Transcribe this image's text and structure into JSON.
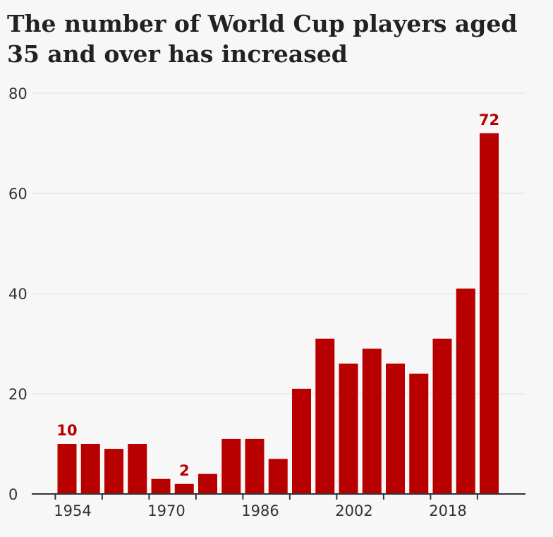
{
  "chart_data": {
    "type": "bar",
    "title": "The number of World Cup players aged 35 and over has increased",
    "categories": [
      "1954",
      "1958",
      "1962",
      "1966",
      "1970",
      "1974",
      "1978",
      "1982",
      "1986",
      "1990",
      "1994",
      "1998",
      "2002",
      "2006",
      "2010",
      "2014",
      "2018",
      "2022",
      "2026"
    ],
    "values": [
      10,
      10,
      9,
      10,
      3,
      2,
      4,
      11,
      11,
      7,
      21,
      31,
      26,
      29,
      26,
      24,
      31,
      41,
      72
    ],
    "x_tick_labels": [
      "1954",
      "1970",
      "1986",
      "2002",
      "2018"
    ],
    "y_ticks": [
      0,
      20,
      40,
      60,
      80
    ],
    "ylim": [
      0,
      80
    ],
    "xlabel": "",
    "ylabel": "",
    "grid": true,
    "data_labels": [
      {
        "category": "1954",
        "text": "10"
      },
      {
        "category": "1974",
        "text": "2"
      },
      {
        "category": "2026",
        "text": "72"
      }
    ],
    "bar_color": "#b80000",
    "label_color": "#b80000"
  }
}
